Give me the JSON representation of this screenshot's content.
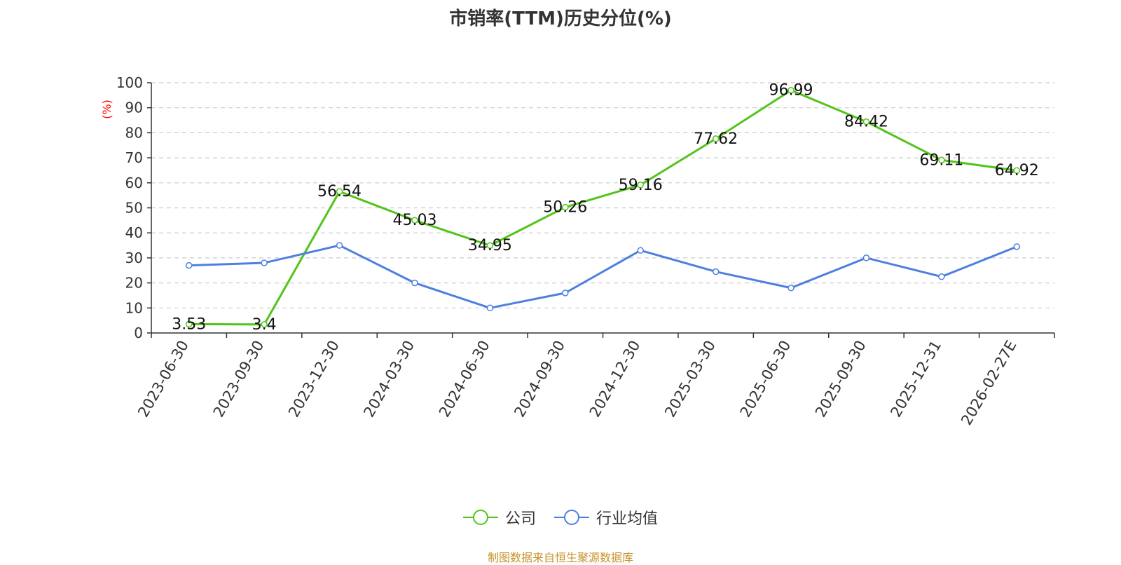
{
  "chart_data": {
    "type": "line",
    "title": "市销率(TTM)历史分位(%)",
    "ylabel": "(%)",
    "xlabel": "",
    "ylim": [
      0,
      100
    ],
    "yticks": [
      0,
      10,
      20,
      30,
      40,
      50,
      60,
      70,
      80,
      90,
      100
    ],
    "grid": true,
    "legend_position": "bottom-center",
    "categories": [
      "2023-06-30",
      "2023-09-30",
      "2023-12-30",
      "2024-03-30",
      "2024-06-30",
      "2024-09-30",
      "2024-12-30",
      "2025-03-30",
      "2025-06-30",
      "2025-09-30",
      "2025-12-31",
      "2026-02-27E"
    ],
    "series": [
      {
        "name": "公司",
        "color": "#52c41a",
        "show_labels": true,
        "values": [
          3.53,
          3.4,
          56.54,
          45.03,
          34.95,
          50.26,
          59.16,
          77.62,
          96.99,
          84.42,
          69.11,
          64.92
        ],
        "labels": [
          "3.53",
          "3.4",
          "56.54",
          "45.03",
          "34.95",
          "50.26",
          "59.16",
          "77.62",
          "96.99",
          "84.42",
          "69.11",
          "64.92"
        ]
      },
      {
        "name": "行业均值",
        "color": "#4e7fe0",
        "show_labels": false,
        "values": [
          27,
          28,
          35,
          20,
          10,
          16,
          33,
          24.5,
          18,
          30,
          22.5,
          34.5
        ]
      }
    ]
  },
  "footer": {
    "source": "制图数据来自恒生聚源数据库"
  }
}
